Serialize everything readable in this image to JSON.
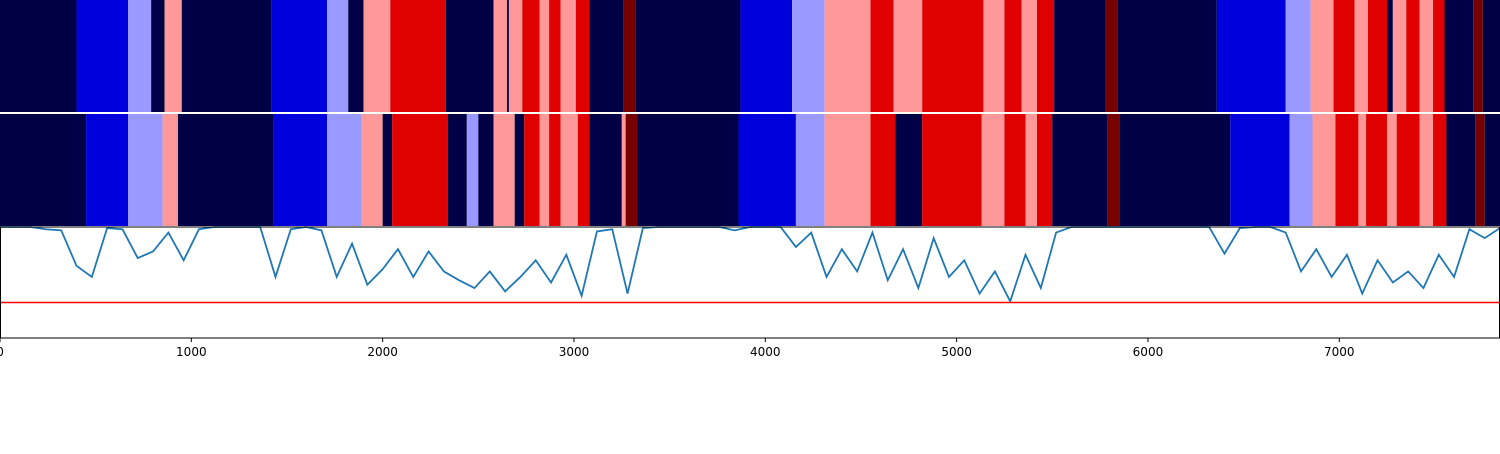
{
  "chart_data": {
    "type": "line",
    "xlim": [
      0,
      7840
    ],
    "xticks": [
      0,
      1000,
      2000,
      3000,
      4000,
      5000,
      6000,
      7000
    ],
    "ylim": [
      0,
      1
    ],
    "bands": [
      {
        "breaks": [
          0,
          400,
          670,
          790,
          860,
          950,
          1420,
          1710,
          1820,
          1900,
          2040,
          2330,
          2580,
          2650,
          2660,
          2730,
          2820,
          2870,
          2930,
          3010,
          3080,
          3260,
          3320,
          3870,
          4140,
          4310,
          4550,
          4670,
          4820,
          5140,
          5250,
          5340,
          5420,
          5510,
          5780,
          5840,
          6360,
          6720,
          6850,
          6970,
          7080,
          7150,
          7250,
          7280,
          7350,
          7420,
          7490,
          7550,
          7700,
          7750,
          7840
        ],
        "colors": [
          "#000046",
          "#0000dd",
          "#9999ff",
          "#000046",
          "#ff9999",
          "#000046",
          "#0000dd",
          "#9999ff",
          "#000046",
          "#ff9999",
          "#e00000",
          "#000046",
          "#ff9999",
          "#000046",
          "#ff9999",
          "#e00000",
          "#ff9999",
          "#e00000",
          "#ff9999",
          "#e00000",
          "#000046",
          "#770000",
          "#000046",
          "#0000dd",
          "#9999ff",
          "#ff9999",
          "#e00000",
          "#ff9999",
          "#e00000",
          "#ff9999",
          "#e00000",
          "#ff9999",
          "#e00000",
          "#000046",
          "#770000",
          "#000046",
          "#0000dd",
          "#9999ff",
          "#ff9999",
          "#e00000",
          "#ff9999",
          "#e00000",
          "#000046",
          "#ff9999",
          "#e00000",
          "#ff9999",
          "#e00000",
          "#000046",
          "#770000",
          "#000046"
        ]
      },
      {
        "breaks": [
          0,
          450,
          670,
          850,
          930,
          1430,
          1710,
          1890,
          2000,
          2050,
          2340,
          2440,
          2500,
          2580,
          2690,
          2740,
          2820,
          2870,
          2930,
          3020,
          3080,
          3250,
          3270,
          3330,
          3860,
          4160,
          4310,
          4550,
          4680,
          4820,
          5130,
          5250,
          5360,
          5420,
          5500,
          5790,
          5850,
          6430,
          6740,
          6860,
          6980,
          7100,
          7140,
          7250,
          7300,
          7420,
          7490,
          7560,
          7710,
          7760,
          7840
        ],
        "colors": [
          "#000046",
          "#0000dd",
          "#9999ff",
          "#ff9999",
          "#000046",
          "#0000dd",
          "#9999ff",
          "#ff9999",
          "#000046",
          "#e00000",
          "#000046",
          "#9999ff",
          "#000046",
          "#ff9999",
          "#000046",
          "#e00000",
          "#ff9999",
          "#e00000",
          "#ff9999",
          "#e00000",
          "#000046",
          "#ff9999",
          "#770000",
          "#000046",
          "#0000dd",
          "#9999ff",
          "#ff9999",
          "#e00000",
          "#000046",
          "#e00000",
          "#ff9999",
          "#e00000",
          "#ff9999",
          "#e00000",
          "#000046",
          "#770000",
          "#000046",
          "#0000dd",
          "#9999ff",
          "#ff9999",
          "#e00000",
          "#ff9999",
          "#e00000",
          "#ff9999",
          "#e00000",
          "#ff9999",
          "#e00000",
          "#000046",
          "#770000",
          "#000046"
        ]
      }
    ],
    "x": [
      0,
      80,
      160,
      240,
      320,
      400,
      480,
      560,
      640,
      720,
      800,
      880,
      960,
      1040,
      1120,
      1200,
      1280,
      1360,
      1440,
      1520,
      1600,
      1680,
      1760,
      1840,
      1920,
      2000,
      2080,
      2160,
      2240,
      2320,
      2400,
      2480,
      2560,
      2640,
      2720,
      2800,
      2880,
      2960,
      3040,
      3120,
      3200,
      3280,
      3360,
      3440,
      3520,
      3600,
      3680,
      3760,
      3840,
      3920,
      4000,
      4080,
      4160,
      4240,
      4320,
      4400,
      4480,
      4560,
      4640,
      4720,
      4800,
      4880,
      4960,
      5040,
      5120,
      5200,
      5280,
      5360,
      5440,
      5520,
      5600,
      5680,
      5760,
      5840,
      5920,
      6000,
      6080,
      6160,
      6240,
      6320,
      6400,
      6480,
      6560,
      6640,
      6720,
      6800,
      6880,
      6960,
      7040,
      7120,
      7200,
      7280,
      7360,
      7440,
      7520,
      7600,
      7680,
      7760,
      7840
    ],
    "series": [
      {
        "color": "#1f77b4",
        "values": [
          1,
          1,
          1,
          0.98,
          0.97,
          0.65,
          0.55,
          0.99,
          0.98,
          0.72,
          0.78,
          0.95,
          0.7,
          0.98,
          1,
          1,
          1,
          1,
          0.55,
          0.98,
          1,
          0.97,
          0.55,
          0.85,
          0.48,
          0.62,
          0.8,
          0.55,
          0.78,
          0.6,
          0.52,
          0.45,
          0.6,
          0.42,
          0.55,
          0.7,
          0.5,
          0.75,
          0.38,
          0.96,
          0.98,
          0.4,
          0.99,
          1,
          1,
          1,
          1,
          1,
          0.97,
          1,
          1,
          1,
          0.82,
          0.95,
          0.55,
          0.8,
          0.6,
          0.95,
          0.52,
          0.8,
          0.45,
          0.9,
          0.55,
          0.7,
          0.4,
          0.6,
          0.33,
          0.75,
          0.45,
          0.95,
          1,
          1,
          1,
          1,
          1,
          1,
          1,
          1,
          1,
          1,
          0.76,
          0.99,
          1,
          1,
          0.95,
          0.6,
          0.8,
          0.55,
          0.75,
          0.4,
          0.7,
          0.5,
          0.6,
          0.45,
          0.75,
          0.55,
          0.98,
          0.9,
          0.99
        ]
      }
    ],
    "hline": {
      "value": 0.32,
      "color": "#ff0000"
    }
  }
}
